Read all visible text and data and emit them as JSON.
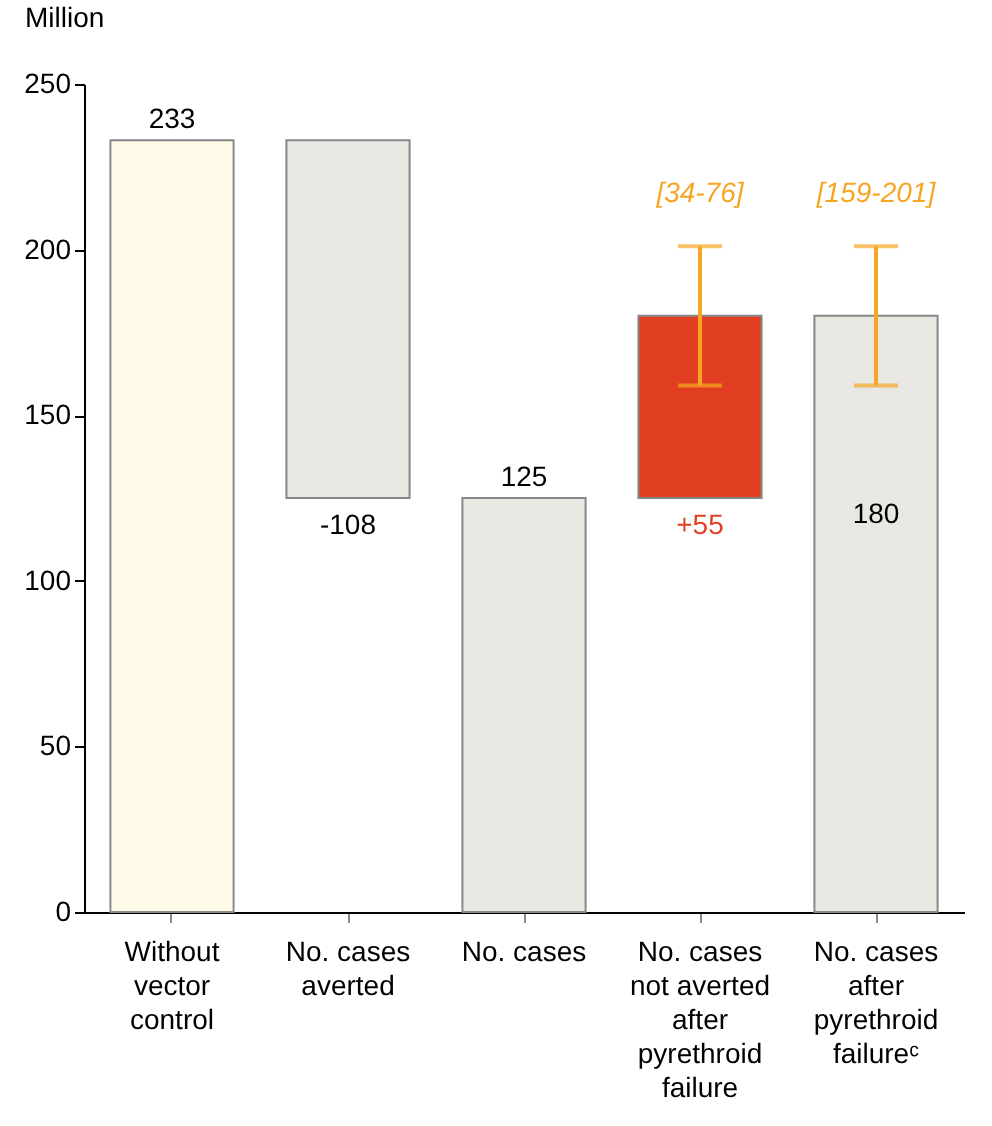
{
  "chart_data": {
    "type": "bar",
    "ylabel": "Million",
    "categories": [
      "Without vector control",
      "No. cases averted",
      "No. cases",
      "No. cases not averted after pyrethroid failure",
      "No. cases after pyrethroid failureᶜ"
    ],
    "values": [
      233,
      -108,
      125,
      55,
      180
    ],
    "base": [
      0,
      233,
      0,
      125,
      0
    ],
    "colors": [
      "#fffbe8",
      "#e8e7e2",
      "#e8e7e2",
      "#e23f22",
      "#e8e7e2"
    ],
    "errors": [
      null,
      null,
      null,
      [
        159,
        201
      ],
      [
        159,
        201
      ]
    ],
    "value_labels": [
      "233",
      "-108",
      "125",
      "+55",
      "180"
    ],
    "annotations": [
      {
        "text": "[34-76]",
        "x": "No. cases not averted after pyrethroid failure",
        "y": 201
      },
      {
        "text": "[159-201]",
        "x": "No. cases after pyrethroid failureᶜ",
        "y": 201
      }
    ],
    "ylim": [
      0,
      250
    ],
    "yticks": [
      0,
      50,
      100,
      150,
      200,
      250
    ]
  }
}
